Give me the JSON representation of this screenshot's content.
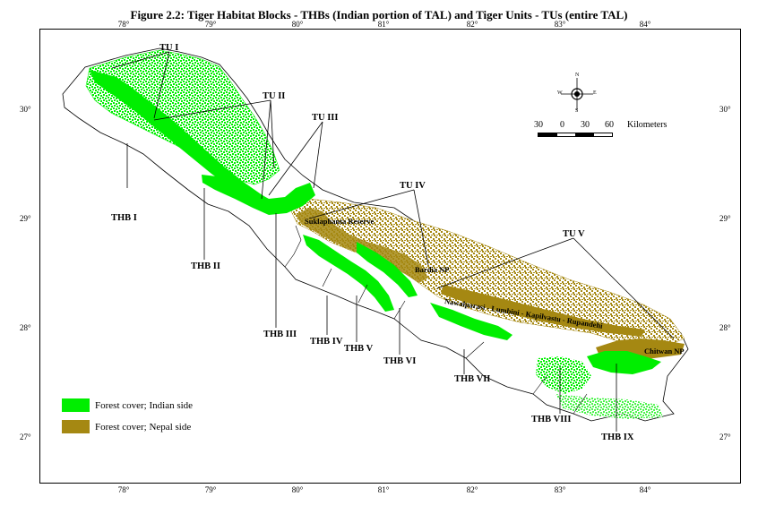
{
  "title": "Figure 2.2:   Tiger Habitat Blocks - THBs (Indian portion of TAL) and Tiger Units - TUs (entire TAL)",
  "axes": {
    "longitude_ticks": [
      "78°",
      "79°",
      "80°",
      "81°",
      "82°",
      "83°",
      "84°"
    ],
    "latitude_ticks": [
      "30°",
      "29°",
      "28°",
      "27°"
    ]
  },
  "colors": {
    "forest_india": "#00ee00",
    "forest_nepal": "#a58812",
    "border": "#000000",
    "background": "#ffffff"
  },
  "legend": [
    {
      "label": "Forest cover; Indian side",
      "color": "#00ee00"
    },
    {
      "label": "Forest cover; Nepal side",
      "color": "#a58812"
    }
  ],
  "scale_bar": {
    "labels": [
      "30",
      "0",
      "30",
      "60"
    ],
    "unit": "Kilometers"
  },
  "north_arrow": {
    "letters": [
      "N",
      "S",
      "E",
      "W"
    ]
  },
  "tiger_units": [
    "TU I",
    "TU II",
    "TU III",
    "TU IV",
    "TU V"
  ],
  "tiger_habitat_blocks": [
    "THB I",
    "THB II",
    "THB III",
    "THB IV",
    "THB V",
    "THB VI",
    "THB VII",
    "THB VIII",
    "THB IX"
  ],
  "protected_areas": {
    "suklaphanta": "Suklaphanta Reserve",
    "bardia": "Bardia NP",
    "chitwan": "Chitwan NP",
    "corridor": "Nawalparasi - Lumbini - Kapilvastu - Rupandehi"
  }
}
